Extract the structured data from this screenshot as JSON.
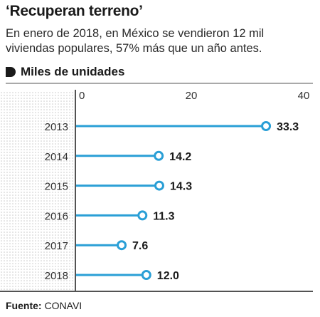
{
  "header": {
    "title": "‘Recuperan terreno’",
    "subtitle": "En enero de 2018, en México se vendieron 12 mil viviendas populares, 57% más que un año antes.",
    "unit_label": "Miles de unidades"
  },
  "source": {
    "label": "Fuente:",
    "text": "CONAVI"
  },
  "colors": {
    "series": "#2a9fd6",
    "text": "#1a1a1a",
    "dots": "#c9c9c9"
  },
  "chart_data": {
    "type": "lollipop",
    "orientation": "horizontal",
    "categories": [
      "2013",
      "2014",
      "2015",
      "2016",
      "2017",
      "2018"
    ],
    "values": [
      33.3,
      14.2,
      14.3,
      11.3,
      7.6,
      12.0
    ],
    "value_labels": [
      "33.3",
      "14.2",
      "14.3",
      "11.3",
      "7.6",
      "12.0"
    ],
    "x_ticks": [
      "0",
      "20",
      "40"
    ],
    "xlim": [
      0,
      40
    ],
    "title": "‘Recuperan terreno’",
    "xlabel": "Miles de unidades",
    "ylabel": "",
    "grid": false
  }
}
